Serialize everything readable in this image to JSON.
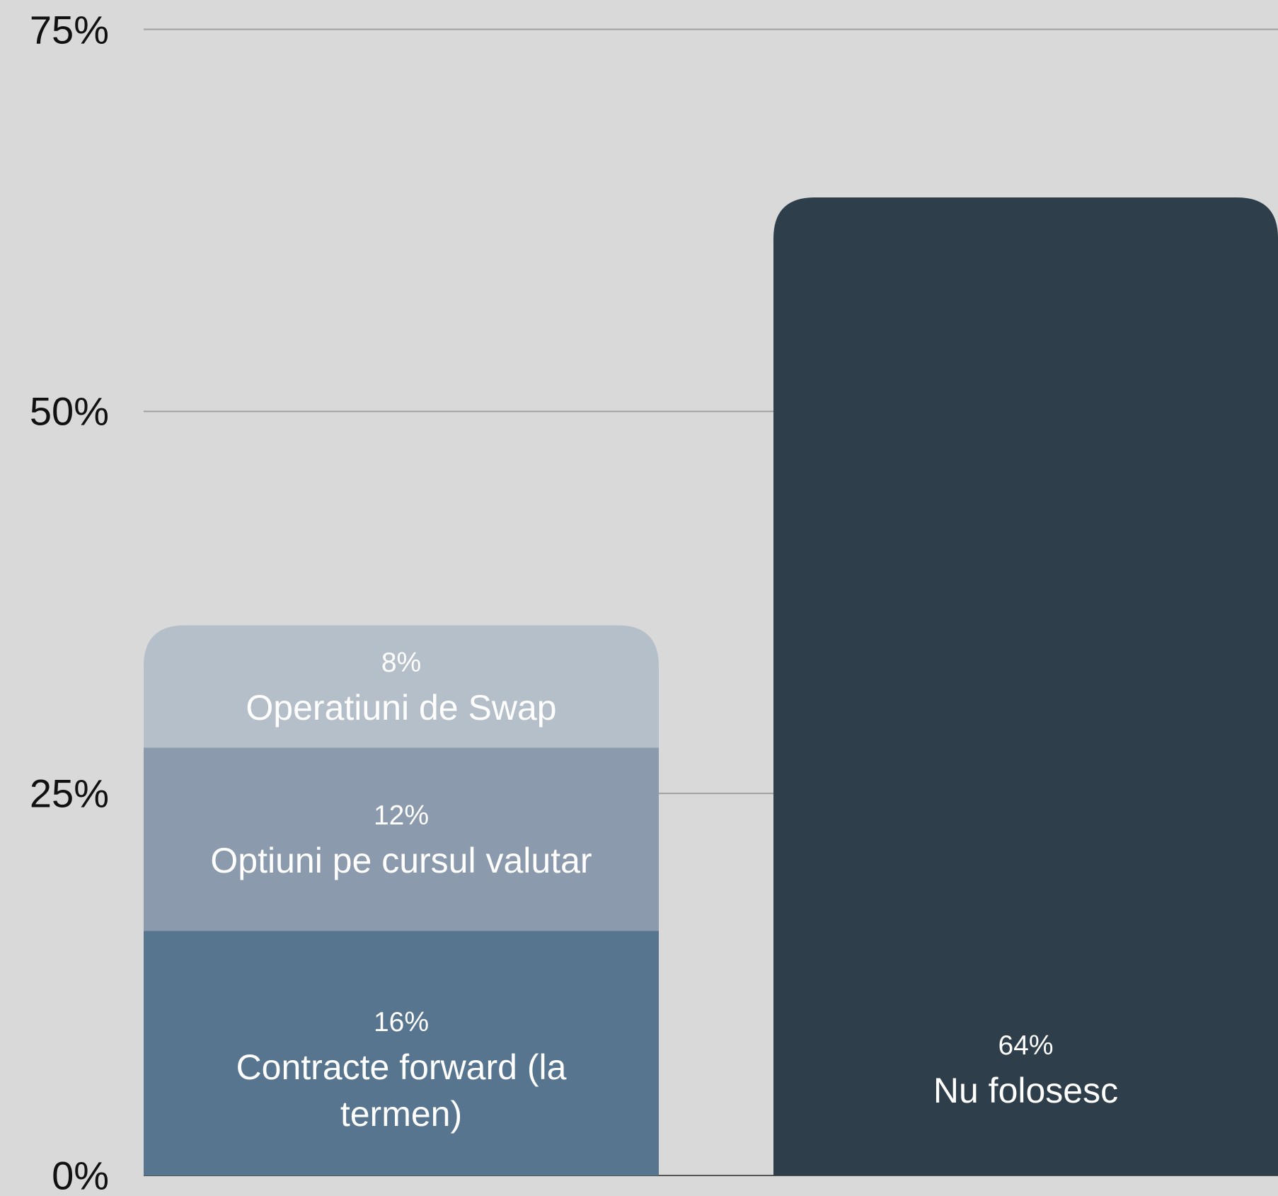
{
  "chart_data": {
    "type": "stacked_bar",
    "categories": [
      null,
      null
    ],
    "series": [
      {
        "name": "Contracte forward (la termen)",
        "color": "#57758f",
        "values": [
          16,
          null
        ],
        "value_labels": [
          "16%",
          null
        ]
      },
      {
        "name": "Optiuni pe cursul valutar",
        "color": "#8b9aad",
        "values": [
          12,
          null
        ],
        "value_labels": [
          "12%",
          null
        ]
      },
      {
        "name": "Operatiuni de Swap",
        "color": "#b5bfc9",
        "values": [
          8,
          null
        ],
        "value_labels": [
          "8%",
          null
        ]
      },
      {
        "name": "Nu folosesc",
        "color": "#2e3e4a",
        "values": [
          null,
          64
        ],
        "value_labels": [
          null,
          "64%"
        ]
      }
    ],
    "ylim": [
      0,
      75
    ],
    "yticks": [
      {
        "value": 0,
        "label": "0%"
      },
      {
        "value": 25,
        "label": "25%"
      },
      {
        "value": 50,
        "label": "50%"
      },
      {
        "value": 75,
        "label": "75%"
      }
    ],
    "grid": true
  }
}
